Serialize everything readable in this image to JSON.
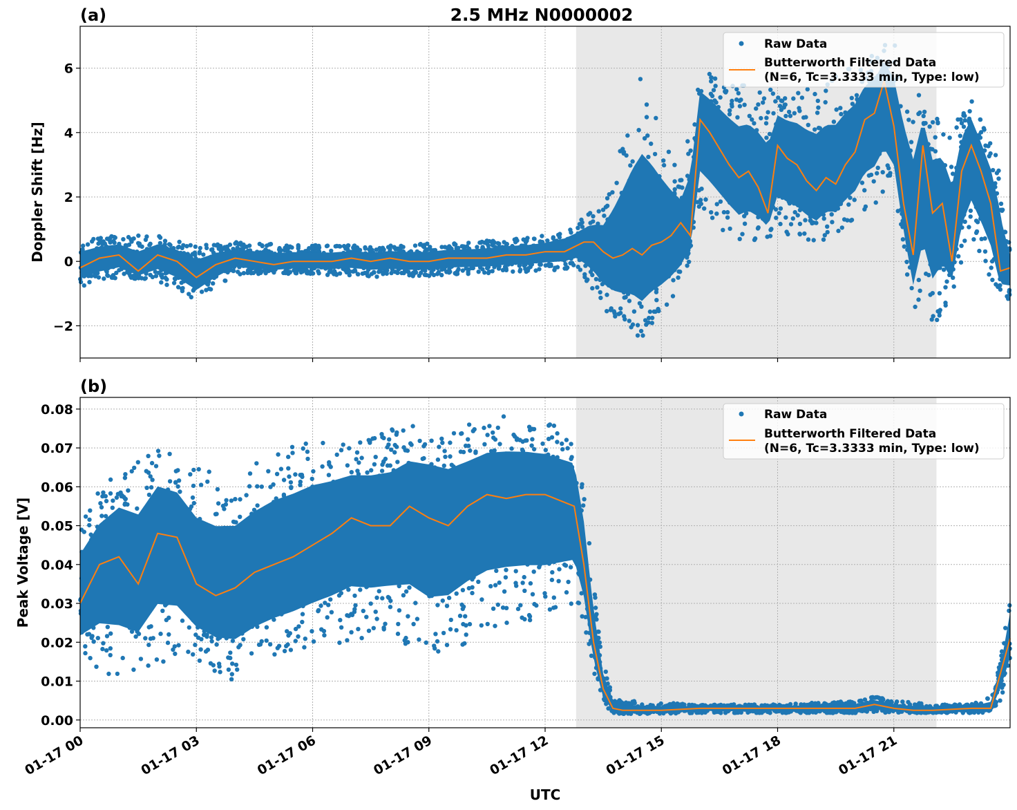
{
  "figure": {
    "title": "2.5 MHz N0000002",
    "xlabel": "UTC",
    "x_tick_labels": [
      "01-17 00",
      "01-17 03",
      "01-17 06",
      "01-17 09",
      "01-17 12",
      "01-17 15",
      "01-17 18",
      "01-17 21"
    ],
    "legend_raw": "Raw Data",
    "legend_filtered_line1": "Butterworth Filtered Data",
    "legend_filtered_line2": "(N=6, Tc=3.3333 min, Type: low)",
    "raw_color": "#1f77b4",
    "filtered_color": "#ff7f0e",
    "shade_color": "#e8e8e8"
  },
  "chart_data": [
    {
      "type": "scatter",
      "panel_label": "(a)",
      "ylabel": "Doppler Shift [Hz]",
      "xlim_hours": [
        0,
        24
      ],
      "ylim": [
        -3,
        7.3
      ],
      "yticks": [
        -2,
        0,
        2,
        4,
        6
      ],
      "ytick_labels": [
        "−2",
        "0",
        "2",
        "4",
        "6"
      ],
      "shaded_interval_hours": [
        12.8,
        22.1
      ],
      "grid": true,
      "legend_position": "top-right",
      "series": [
        {
          "name": "Butterworth Filtered Data",
          "x_hours": [
            0,
            0.5,
            1,
            1.5,
            2,
            2.5,
            3,
            3.5,
            4,
            4.5,
            5,
            5.5,
            6,
            6.5,
            7,
            7.5,
            8,
            8.5,
            9,
            9.5,
            10,
            10.5,
            11,
            11.5,
            12,
            12.5,
            13,
            13.25,
            13.5,
            13.75,
            14,
            14.25,
            14.5,
            14.75,
            15,
            15.25,
            15.5,
            15.75,
            16,
            16.25,
            16.5,
            16.75,
            17,
            17.25,
            17.5,
            17.75,
            18,
            18.25,
            18.5,
            18.75,
            19,
            19.25,
            19.5,
            19.75,
            20,
            20.25,
            20.5,
            20.75,
            21,
            21.25,
            21.5,
            21.75,
            22,
            22.25,
            22.5,
            22.75,
            23,
            23.25,
            23.5,
            23.75,
            24
          ],
          "y": [
            -0.2,
            0.1,
            0.2,
            -0.3,
            0.2,
            0.0,
            -0.5,
            -0.1,
            0.1,
            0.0,
            -0.1,
            0.0,
            0.0,
            0.0,
            0.1,
            0.0,
            0.1,
            0.0,
            0.0,
            0.1,
            0.1,
            0.1,
            0.2,
            0.2,
            0.3,
            0.3,
            0.6,
            0.6,
            0.3,
            0.1,
            0.2,
            0.4,
            0.2,
            0.5,
            0.6,
            0.8,
            1.2,
            0.8,
            4.4,
            4.0,
            3.5,
            3.0,
            2.6,
            2.8,
            2.3,
            1.5,
            3.6,
            3.2,
            3.0,
            2.5,
            2.2,
            2.6,
            2.4,
            3.0,
            3.4,
            4.4,
            4.6,
            5.6,
            4.2,
            1.8,
            0.2,
            3.6,
            1.5,
            1.8,
            0.0,
            2.8,
            3.6,
            2.8,
            1.8,
            -0.3,
            -0.2
          ]
        },
        {
          "name": "Raw Data",
          "envelope_x_hours": [
            0,
            1,
            2,
            3,
            4,
            6,
            8,
            10,
            12,
            12.8,
            13.5,
            14.5,
            15.5,
            16,
            17,
            18,
            19,
            20,
            21,
            21.5,
            22,
            22.5,
            23,
            23.7,
            24
          ],
          "envelope_y_min": [
            -0.8,
            -0.5,
            -0.6,
            -1.2,
            -0.4,
            -0.4,
            -0.5,
            -0.4,
            -0.3,
            -0.2,
            -1.5,
            -2.4,
            -1.2,
            1.5,
            0.5,
            0.8,
            0.5,
            1.2,
            2.0,
            -1.5,
            -2.2,
            -1.0,
            0.5,
            -1.0,
            -1.2
          ],
          "envelope_y_max": [
            0.7,
            0.8,
            0.8,
            0.5,
            0.6,
            0.5,
            0.5,
            0.6,
            0.8,
            1.2,
            1.8,
            5.9,
            2.5,
            6.0,
            5.5,
            5.3,
            5.4,
            6.1,
            6.9,
            5.6,
            4.5,
            4.3,
            5.1,
            3.2,
            0.5
          ]
        }
      ]
    },
    {
      "type": "scatter",
      "panel_label": "(b)",
      "ylabel": "Peak Voltage [V]",
      "xlim_hours": [
        0,
        24
      ],
      "ylim": [
        -0.002,
        0.083
      ],
      "yticks": [
        0.0,
        0.01,
        0.02,
        0.03,
        0.04,
        0.05,
        0.06,
        0.07,
        0.08
      ],
      "ytick_labels": [
        "0.00",
        "0.01",
        "0.02",
        "0.03",
        "0.04",
        "0.05",
        "0.06",
        "0.07",
        "0.08"
      ],
      "shaded_interval_hours": [
        12.8,
        22.1
      ],
      "grid": true,
      "legend_position": "top-right",
      "series": [
        {
          "name": "Butterworth Filtered Data",
          "x_hours": [
            0,
            0.5,
            1,
            1.5,
            2,
            2.5,
            3,
            3.5,
            4,
            4.5,
            5,
            5.5,
            6,
            6.5,
            7,
            7.5,
            8,
            8.5,
            9,
            9.5,
            10,
            10.5,
            11,
            11.5,
            12,
            12.5,
            12.75,
            13,
            13.25,
            13.5,
            13.75,
            14,
            15,
            16,
            17,
            18,
            19,
            20,
            20.5,
            21,
            21.5,
            22,
            23,
            23.5,
            23.75,
            24
          ],
          "y": [
            0.03,
            0.04,
            0.042,
            0.035,
            0.048,
            0.047,
            0.035,
            0.032,
            0.034,
            0.038,
            0.04,
            0.042,
            0.045,
            0.048,
            0.052,
            0.05,
            0.05,
            0.055,
            0.052,
            0.05,
            0.055,
            0.058,
            0.057,
            0.058,
            0.058,
            0.056,
            0.055,
            0.04,
            0.02,
            0.008,
            0.003,
            0.0025,
            0.0025,
            0.003,
            0.003,
            0.003,
            0.003,
            0.003,
            0.004,
            0.003,
            0.0025,
            0.0025,
            0.003,
            0.003,
            0.012,
            0.021
          ]
        },
        {
          "name": "Raw Data",
          "envelope_x_hours": [
            0,
            1,
            2,
            3,
            4,
            5,
            6,
            7,
            8,
            9,
            10,
            11,
            12,
            12.75,
            13,
            13.25,
            13.5,
            13.75,
            14,
            16,
            18,
            20,
            20.5,
            21,
            22,
            23,
            23.5,
            23.75,
            24
          ],
          "envelope_y_min": [
            0.015,
            0.01,
            0.015,
            0.015,
            0.01,
            0.015,
            0.018,
            0.02,
            0.022,
            0.015,
            0.02,
            0.025,
            0.025,
            0.03,
            0.025,
            0.012,
            0.004,
            0.0018,
            0.0015,
            0.0018,
            0.0018,
            0.0018,
            0.002,
            0.0018,
            0.0018,
            0.0018,
            0.002,
            0.005,
            0.012
          ],
          "envelope_y_max": [
            0.053,
            0.065,
            0.07,
            0.066,
            0.063,
            0.07,
            0.073,
            0.072,
            0.075,
            0.077,
            0.076,
            0.079,
            0.077,
            0.075,
            0.06,
            0.035,
            0.015,
            0.006,
            0.005,
            0.004,
            0.004,
            0.005,
            0.006,
            0.005,
            0.004,
            0.004,
            0.006,
            0.015,
            0.033
          ]
        }
      ]
    }
  ]
}
